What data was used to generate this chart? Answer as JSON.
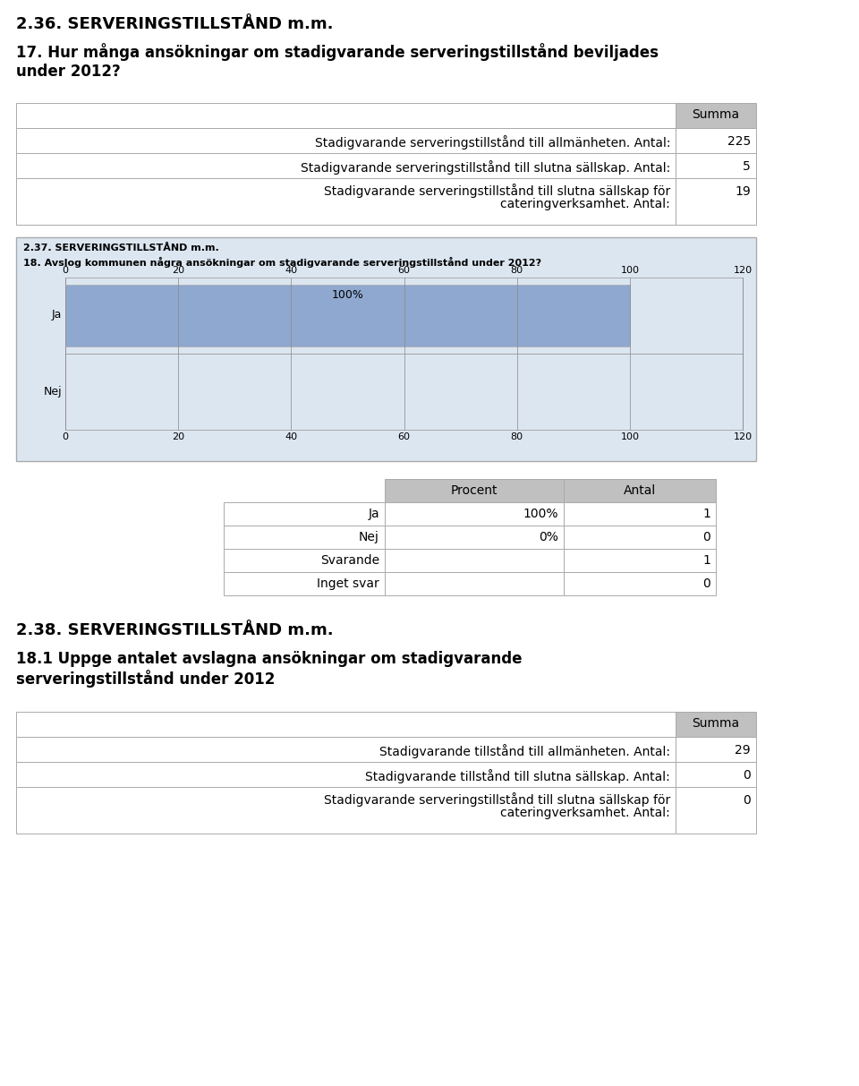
{
  "page_bg": "#ffffff",
  "section1_heading": "2.36. SERVERINGSTILLSTÅND m.m.",
  "question17": "17. Hur många ansökningar om stadigvarande serveringstillstånd beviljades\nunder 2012?",
  "table1_header": "Summa",
  "table1_rows": [
    [
      "Stadigvarande serveringstillstånd till allmänheten. Antal:",
      "225"
    ],
    [
      "Stadigvarande serveringstillstånd till slutna sällskap. Antal:",
      "5"
    ],
    [
      "Stadigvarande serveringstillstånd till slutna sällskap för\ncateringverksamhet. Antal:",
      "19"
    ]
  ],
  "chart_section_heading": "2.37. SERVERINGSTILLSTÅND m.m.",
  "chart_question": "18. Avslog kommunen några ansökningar om stadigvarande serveringstillstånd under 2012?",
  "chart_bg": "#dce6f1",
  "bar_color": "#8fa8d0",
  "bar_categories": [
    "Ja",
    "Nej"
  ],
  "bar_values": [
    100,
    0
  ],
  "bar_label": "100%",
  "x_ticks": [
    0,
    20,
    40,
    60,
    80,
    100,
    120
  ],
  "table2_headers": [
    "Procent",
    "Antal"
  ],
  "table2_rows": [
    [
      "Ja",
      "100%",
      "1"
    ],
    [
      "Nej",
      "0%",
      "0"
    ],
    [
      "Svarande",
      "",
      "1"
    ],
    [
      "Inget svar",
      "",
      "0"
    ]
  ],
  "section2_heading": "2.38. SERVERINGSTILLSTÅND m.m.",
  "question18_1": "18.1 Uppge antalet avslagna ansökningar om stadigvarande\nserveringstillstånd under 2012",
  "table3_header": "Summa",
  "table3_rows": [
    [
      "Stadigvarande tillstånd till allmänheten. Antal:",
      "29"
    ],
    [
      "Stadigvarande tillstånd till slutna sällskap. Antal:",
      "0"
    ],
    [
      "Stadigvarande serveringstillstånd till slutna sällskap för\ncateringverksamhet. Antal:",
      "0"
    ]
  ],
  "header_bg": "#c0c0c0",
  "cell_bg_white": "#ffffff",
  "border_color": "#aaaaaa"
}
